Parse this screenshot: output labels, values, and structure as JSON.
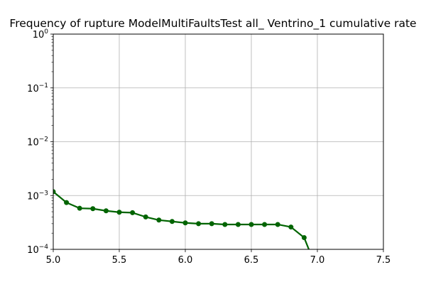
{
  "chart_data": {
    "type": "line",
    "title": "Frequency of rupture ModelMultiFaultsTest all_ Ventrino_1 cumulative rate",
    "xlabel": "",
    "ylabel": "",
    "xlim": [
      5.0,
      7.5
    ],
    "ylim": [
      0.0001,
      1
    ],
    "yscale": "log",
    "grid": true,
    "x_ticks": [
      5.0,
      5.5,
      6.0,
      6.5,
      7.0,
      7.5
    ],
    "x_tick_labels": [
      "5.0",
      "5.5",
      "6.0",
      "6.5",
      "7.0",
      "7.5"
    ],
    "y_ticks": [
      0.0001,
      0.001,
      0.01,
      0.1,
      1
    ],
    "y_tick_labels": [
      {
        "base": "10",
        "exp": "−4"
      },
      {
        "base": "10",
        "exp": "−3"
      },
      {
        "base": "10",
        "exp": "−2"
      },
      {
        "base": "10",
        "exp": "−1"
      },
      {
        "base": "10",
        "exp": "0"
      }
    ],
    "series": [
      {
        "color": "#006400",
        "x": [
          5.0,
          5.1,
          5.2,
          5.3,
          5.4,
          5.5,
          5.6,
          5.7,
          5.8,
          5.9,
          6.0,
          6.1,
          6.2,
          6.3,
          6.4,
          6.5,
          6.6,
          6.7,
          6.8,
          6.9,
          7.0
        ],
        "y": [
          0.00118,
          0.00074,
          0.00058,
          0.00057,
          0.00052,
          0.00049,
          0.00048,
          0.0004,
          0.00035,
          0.00033,
          0.00031,
          0.0003,
          0.0003,
          0.00029,
          0.00029,
          0.00029,
          0.00029,
          0.00029,
          0.00026,
          0.000165,
          4e-05
        ]
      }
    ]
  }
}
